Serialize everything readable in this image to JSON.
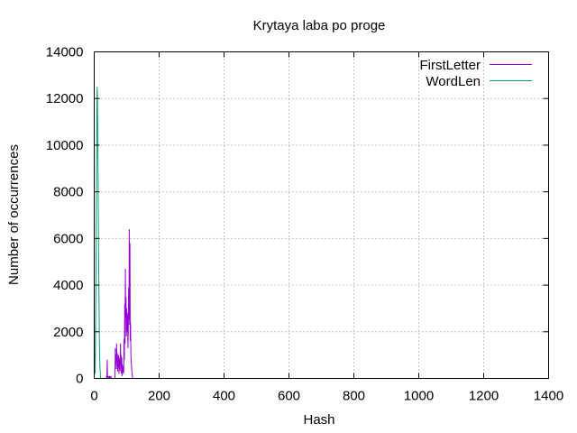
{
  "chart_data": {
    "type": "line",
    "title": "Krytaya laba po proge",
    "xlabel": "Hash",
    "ylabel": "Number of occurrences",
    "xlim": [
      0,
      1400
    ],
    "ylim": [
      0,
      14000
    ],
    "x_ticks": [
      0,
      200,
      400,
      600,
      800,
      1000,
      1200,
      1400
    ],
    "y_ticks": [
      0,
      2000,
      4000,
      6000,
      8000,
      10000,
      12000,
      14000
    ],
    "grid": true,
    "legend_position": "top-right",
    "series": [
      {
        "name": "FirstLetter",
        "color": "#9400d3",
        "x": [
          35,
          36,
          37,
          38,
          39,
          40,
          41,
          42,
          43,
          44,
          45,
          46,
          47,
          48,
          49,
          50,
          51,
          52,
          53,
          54,
          55,
          56,
          57,
          58,
          59,
          60,
          61,
          62,
          63,
          64,
          65,
          66,
          67,
          68,
          69,
          70,
          71,
          72,
          73,
          74,
          75,
          76,
          77,
          78,
          79,
          80,
          81,
          82,
          83,
          84,
          85,
          86,
          87,
          88,
          89,
          90,
          91,
          92,
          93,
          94,
          95,
          96,
          97,
          98,
          99,
          100,
          101,
          102,
          103,
          104,
          105,
          106,
          107,
          108,
          109,
          110,
          111,
          112,
          113,
          114,
          115,
          116,
          117,
          118,
          119,
          120,
          121,
          122,
          123,
          124,
          125,
          126,
          127
        ],
        "y": [
          0,
          0,
          0,
          50,
          0,
          800,
          0,
          100,
          0,
          50,
          0,
          0,
          100,
          0,
          0,
          80,
          0,
          50,
          0,
          0,
          0,
          0,
          0,
          0,
          0,
          0,
          0,
          0,
          0,
          0,
          1300,
          600,
          1000,
          400,
          1500,
          700,
          1100,
          300,
          900,
          500,
          1000,
          200,
          800,
          400,
          900,
          300,
          1500,
          600,
          1000,
          200,
          900,
          100,
          600,
          300,
          500,
          200,
          300,
          1700,
          800,
          3200,
          1500,
          4700,
          2600,
          3500,
          1800,
          3000,
          2000,
          2800,
          2400,
          1300,
          2000,
          3900,
          2500,
          6400,
          2300,
          5800,
          1600,
          2400,
          1000,
          700,
          500,
          300,
          200,
          0,
          0,
          0,
          0,
          0,
          0,
          0,
          0,
          0,
          0
        ]
      },
      {
        "name": "WordLen",
        "color": "#009e73",
        "x": [
          0,
          1,
          2,
          3,
          4,
          5,
          6,
          7,
          8,
          9,
          10,
          11,
          12,
          13,
          14,
          15,
          16,
          17,
          18,
          19,
          20
        ],
        "y": [
          4000,
          300,
          500,
          200,
          1500,
          3500,
          6500,
          9000,
          11000,
          12500,
          12000,
          10000,
          8500,
          6000,
          4500,
          3000,
          1500,
          800,
          400,
          100,
          0
        ]
      }
    ]
  }
}
